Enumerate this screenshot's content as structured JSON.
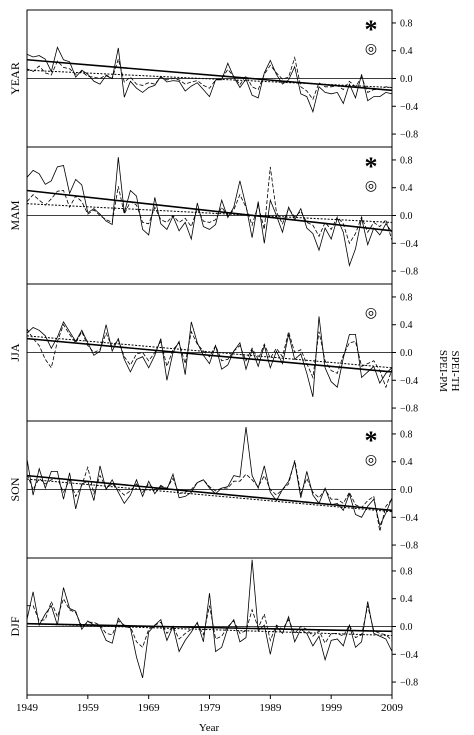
{
  "chart_data": {
    "type": "line",
    "xlabel": "Year",
    "x_ticks": [
      1949,
      1959,
      1969,
      1979,
      1989,
      1999,
      2009
    ],
    "xlim": [
      1949,
      2009
    ],
    "ylim": [
      -0.9,
      0.9
    ],
    "y_ticks": [
      0.8,
      0.4,
      0.0,
      -0.4,
      -0.8
    ],
    "y_tick_labels": [
      "0.8",
      "0.4",
      "0.0",
      "−0.4",
      "−0.8"
    ],
    "legend": [
      "SPEI-PM",
      "SPEI-TH"
    ],
    "markers": {
      "asterisk": "*",
      "circle": "◎"
    },
    "panels": [
      {
        "label": "YEAR",
        "asterisk": true,
        "circle": true,
        "trend_pm": [
          0.27,
          -0.17
        ],
        "trend_th": [
          0.12,
          -0.13
        ],
        "series": [
          {
            "name": "SPEI-PM",
            "values": [
              0.35,
              0.31,
              0.33,
              0.28,
              0.1,
              0.45,
              0.27,
              0.24,
              0.02,
              0.12,
              0.06,
              -0.04,
              -0.08,
              0.04,
              0.0,
              0.44,
              -0.27,
              -0.04,
              -0.14,
              -0.2,
              -0.13,
              -0.1,
              0.03,
              -0.05,
              -0.03,
              -0.04,
              -0.18,
              -0.11,
              -0.06,
              -0.16,
              -0.26,
              -0.02,
              -0.02,
              0.22,
              0.02,
              -0.13,
              -0.01,
              -0.24,
              -0.28,
              0.08,
              0.26,
              0.06,
              -0.08,
              -0.02,
              0.17,
              -0.22,
              -0.26,
              -0.48,
              -0.12,
              -0.2,
              -0.22,
              -0.2,
              -0.36,
              -0.08,
              -0.28,
              0.06,
              -0.32,
              -0.26,
              -0.26,
              -0.2,
              -0.22
            ]
          },
          {
            "name": "SPEI-TH",
            "values": [
              0.14,
              0.1,
              0.18,
              0.08,
              0.05,
              0.25,
              0.16,
              0.14,
              0.06,
              0.1,
              0.03,
              0.02,
              0.0,
              0.05,
              0.0,
              0.28,
              -0.05,
              0.02,
              -0.08,
              -0.1,
              -0.06,
              -0.08,
              0.02,
              -0.02,
              0.0,
              -0.02,
              -0.08,
              -0.05,
              -0.03,
              -0.1,
              -0.14,
              -0.02,
              0.0,
              0.13,
              0.03,
              -0.09,
              0.04,
              -0.12,
              -0.16,
              0.06,
              0.19,
              0.08,
              -0.01,
              0.02,
              0.3,
              -0.12,
              -0.18,
              -0.3,
              -0.06,
              -0.12,
              -0.12,
              -0.1,
              -0.16,
              -0.04,
              -0.12,
              0.02,
              -0.2,
              -0.16,
              -0.16,
              -0.12,
              -0.13
            ]
          }
        ]
      },
      {
        "label": "MAM",
        "asterisk": true,
        "circle": true,
        "trend_pm": [
          0.36,
          -0.22
        ],
        "trend_th": [
          0.17,
          -0.1
        ],
        "series": [
          {
            "name": "SPEI-PM",
            "values": [
              0.55,
              0.65,
              0.6,
              0.45,
              0.5,
              0.7,
              0.72,
              0.32,
              0.52,
              0.44,
              0.04,
              0.1,
              0.02,
              -0.08,
              -0.13,
              0.84,
              0.04,
              0.36,
              0.28,
              -0.2,
              -0.28,
              0.26,
              -0.12,
              -0.2,
              -0.01,
              -0.22,
              -0.1,
              -0.34,
              0.18,
              -0.16,
              -0.2,
              -0.13,
              0.22,
              -0.03,
              0.12,
              0.5,
              0.14,
              -0.32,
              0.2,
              -0.4,
              0.22,
              0.0,
              -0.24,
              0.12,
              -0.06,
              0.1,
              -0.18,
              -0.26,
              -0.5,
              -0.18,
              -0.34,
              -0.04,
              -0.24,
              -0.72,
              -0.48,
              -0.04,
              -0.42,
              -0.18,
              -0.28,
              -0.12,
              -0.24
            ]
          },
          {
            "name": "SPEI-TH",
            "values": [
              0.2,
              0.3,
              0.22,
              0.15,
              0.24,
              0.35,
              0.36,
              0.12,
              0.28,
              0.2,
              0.02,
              0.08,
              0.0,
              -0.06,
              -0.1,
              0.42,
              0.02,
              0.2,
              0.15,
              -0.1,
              -0.12,
              0.12,
              -0.06,
              -0.1,
              0.0,
              -0.1,
              -0.04,
              -0.16,
              0.1,
              -0.08,
              -0.1,
              -0.06,
              0.12,
              0.0,
              0.08,
              0.3,
              0.12,
              -0.14,
              0.15,
              -0.2,
              0.7,
              0.05,
              -0.12,
              0.1,
              -0.02,
              0.06,
              -0.1,
              -0.14,
              -0.3,
              -0.1,
              -0.2,
              -0.02,
              -0.12,
              -0.4,
              -0.26,
              -0.02,
              -0.24,
              -0.1,
              -0.16,
              -0.06,
              -0.36
            ]
          }
        ]
      },
      {
        "label": "JJA",
        "asterisk": false,
        "circle": true,
        "trend_pm": [
          0.2,
          -0.28
        ],
        "trend_th": [
          0.24,
          -0.22
        ],
        "series": [
          {
            "name": "SPEI-PM",
            "values": [
              0.28,
              0.36,
              0.32,
              0.24,
              0.06,
              0.22,
              0.44,
              0.3,
              0.16,
              0.32,
              0.14,
              -0.04,
              0.02,
              0.4,
              0.02,
              0.2,
              -0.1,
              -0.28,
              -0.1,
              -0.06,
              -0.22,
              -0.04,
              0.2,
              -0.4,
              0.0,
              0.16,
              -0.32,
              0.44,
              0.14,
              -0.04,
              -0.16,
              0.1,
              -0.24,
              -0.18,
              0.02,
              0.14,
              -0.24,
              0.04,
              -0.2,
              0.1,
              -0.22,
              0.02,
              -0.16,
              0.26,
              -0.1,
              -0.02,
              -0.3,
              -0.64,
              0.52,
              -0.22,
              -0.42,
              -0.5,
              -0.08,
              0.26,
              0.26,
              -0.36,
              -0.28,
              -0.2,
              -0.44,
              -0.3,
              -0.22
            ]
          },
          {
            "name": "SPEI-TH",
            "values": [
              0.34,
              0.2,
              0.1,
              -0.1,
              -0.22,
              0.16,
              0.4,
              0.26,
              0.14,
              0.3,
              0.1,
              0.0,
              0.04,
              0.28,
              0.08,
              0.18,
              -0.06,
              -0.18,
              -0.02,
              0.0,
              -0.12,
              0.0,
              0.16,
              -0.2,
              0.04,
              0.14,
              -0.16,
              0.3,
              0.12,
              0.02,
              -0.06,
              0.1,
              -0.12,
              -0.1,
              0.02,
              0.1,
              -0.12,
              0.06,
              -0.1,
              0.12,
              -0.08,
              0.06,
              -0.06,
              0.3,
              0.0,
              0.04,
              -0.16,
              -0.36,
              0.3,
              -0.12,
              -0.26,
              -0.3,
              -0.04,
              0.14,
              0.16,
              -0.2,
              -0.16,
              -0.12,
              -0.26,
              -0.5,
              -0.24
            ]
          }
        ]
      },
      {
        "label": "SON",
        "asterisk": true,
        "circle": true,
        "trend_pm": [
          0.2,
          -0.3
        ],
        "trend_th": [
          0.15,
          -0.32
        ],
        "series": [
          {
            "name": "SPEI-PM",
            "values": [
              0.44,
              -0.08,
              0.3,
              0.02,
              0.26,
              0.26,
              -0.14,
              0.24,
              -0.28,
              0.08,
              0.12,
              -0.16,
              0.34,
              0.0,
              0.14,
              -0.04,
              -0.2,
              -0.08,
              0.14,
              -0.1,
              0.12,
              -0.06,
              0.06,
              0.0,
              0.22,
              -0.12,
              -0.1,
              -0.04,
              0.1,
              0.14,
              0.02,
              -0.06,
              0.02,
              0.04,
              0.2,
              0.18,
              0.9,
              0.2,
              0.02,
              0.34,
              -0.04,
              -0.16,
              0.0,
              0.12,
              0.4,
              -0.12,
              0.26,
              -0.08,
              -0.2,
              0.02,
              -0.22,
              -0.2,
              -0.3,
              -0.06,
              -0.36,
              -0.4,
              -0.24,
              -0.14,
              -0.52,
              -0.34,
              -0.12
            ]
          },
          {
            "name": "SPEI-TH",
            "values": [
              0.22,
              0.0,
              0.16,
              0.08,
              0.14,
              0.16,
              -0.04,
              0.14,
              -0.1,
              0.06,
              0.32,
              -0.06,
              0.2,
              0.02,
              0.08,
              0.0,
              -0.08,
              -0.02,
              0.08,
              -0.04,
              0.08,
              0.0,
              0.04,
              0.02,
              0.16,
              -0.06,
              -0.04,
              0.0,
              0.1,
              0.14,
              0.04,
              -0.02,
              0.02,
              0.02,
              0.12,
              0.12,
              0.22,
              0.14,
              0.04,
              0.2,
              0.0,
              -0.08,
              0.0,
              0.08,
              0.42,
              -0.06,
              0.16,
              -0.04,
              -0.12,
              0.0,
              -0.14,
              -0.14,
              -0.2,
              -0.04,
              -0.22,
              -0.26,
              -0.16,
              -0.1,
              -0.6,
              -0.24,
              -0.14
            ]
          }
        ]
      },
      {
        "label": "DJF",
        "asterisk": false,
        "circle": false,
        "trend_pm": [
          0.04,
          -0.07
        ],
        "trend_th": [
          0.04,
          -0.13
        ],
        "series": [
          {
            "name": "SPEI-PM",
            "values": [
              0.1,
              0.5,
              0.02,
              0.18,
              0.3,
              0.02,
              0.56,
              0.26,
              0.22,
              -0.04,
              0.08,
              0.02,
              0.0,
              -0.2,
              -0.24,
              0.12,
              0.0,
              -0.02,
              -0.44,
              -0.74,
              -0.08,
              0.02,
              0.1,
              -0.2,
              0.0,
              -0.36,
              -0.2,
              -0.08,
              0.06,
              -0.22,
              0.48,
              -0.36,
              -0.3,
              -0.02,
              0.1,
              -0.22,
              -0.16,
              0.96,
              -0.06,
              0.02,
              -0.4,
              0.0,
              -0.1,
              0.14,
              -0.22,
              -0.04,
              -0.1,
              -0.28,
              -0.14,
              -0.48,
              -0.2,
              -0.18,
              -0.28,
              0.02,
              -0.3,
              -0.22,
              0.36,
              -0.1,
              -0.14,
              -0.18,
              -0.36
            ]
          },
          {
            "name": "SPEI-TH",
            "values": [
              0.3,
              0.3,
              0.08,
              0.1,
              0.36,
              0.14,
              0.4,
              0.24,
              0.2,
              0.0,
              0.06,
              0.06,
              0.02,
              -0.1,
              -0.12,
              0.08,
              0.02,
              0.0,
              -0.22,
              -0.3,
              -0.04,
              0.02,
              0.06,
              -0.1,
              0.0,
              -0.18,
              -0.1,
              -0.04,
              0.04,
              -0.12,
              0.3,
              -0.18,
              -0.14,
              0.0,
              0.08,
              -0.1,
              -0.06,
              0.24,
              -0.02,
              0.18,
              -0.2,
              0.02,
              -0.04,
              0.1,
              -0.1,
              0.0,
              -0.04,
              -0.14,
              -0.06,
              -0.24,
              -0.1,
              -0.1,
              -0.14,
              0.02,
              -0.16,
              -0.12,
              0.3,
              -0.06,
              -0.1,
              -0.12,
              -0.2
            ]
          }
        ]
      }
    ]
  }
}
